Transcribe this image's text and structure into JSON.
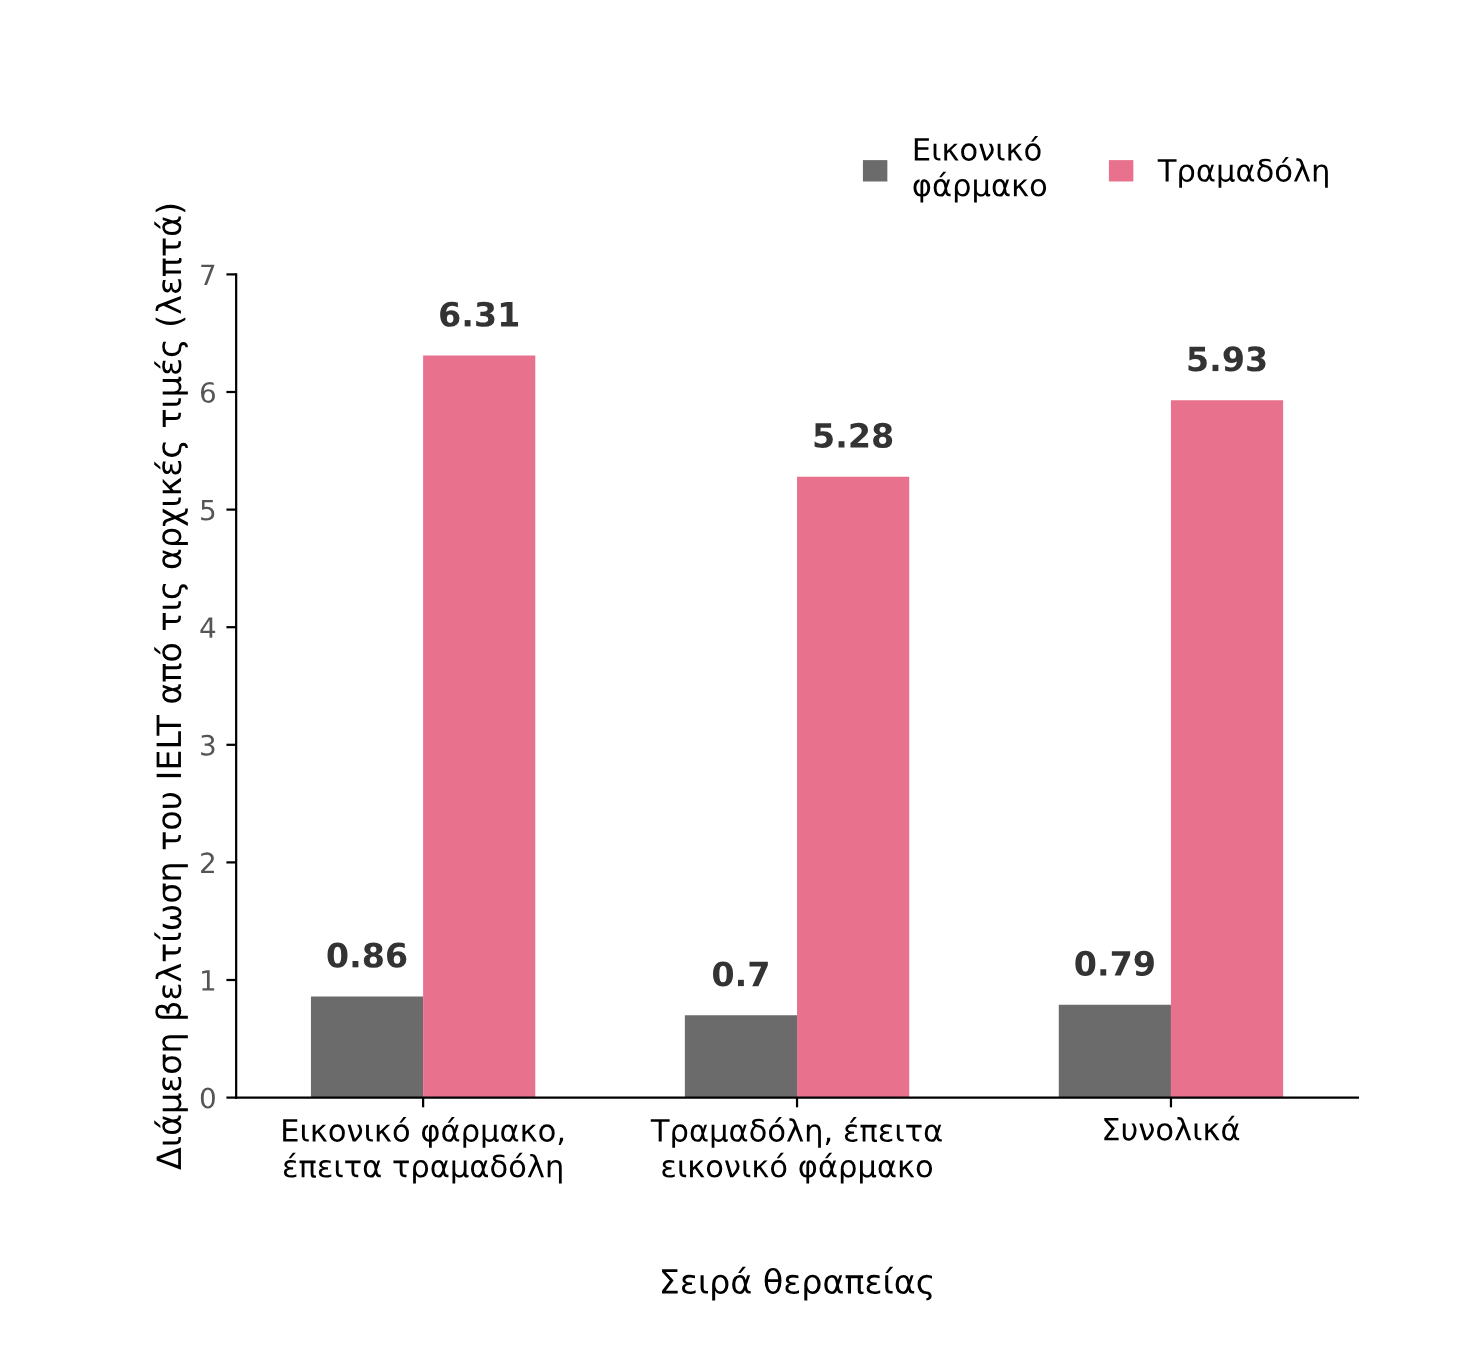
{
  "chart_data": {
    "type": "bar",
    "xlabel": "Σειρά θεραπείας",
    "ylabel": "Διάμεση βελτίωση του IELT από τις αρχικές τιμές (λεπτά)",
    "categories": [
      "Εικονικό φάρμακο,\nέπειτα τραμαδόλη",
      "Τραμαδόλη, έπειτα\nεικονικό φάρμακο",
      "Συνολικά"
    ],
    "series": [
      {
        "name": "Εικονικό\nφάρμακο",
        "color": "#6b6b6b",
        "values": [
          0.86,
          0.7,
          0.79
        ]
      },
      {
        "name": "Τραμαδόλη",
        "color": "#e8718d",
        "values": [
          6.31,
          5.28,
          5.93
        ]
      }
    ],
    "ylim": [
      0,
      7
    ],
    "yticks": [
      0,
      1,
      2,
      3,
      4,
      5,
      6,
      7
    ],
    "data_labels": true,
    "legend": "top right",
    "grid": false
  }
}
